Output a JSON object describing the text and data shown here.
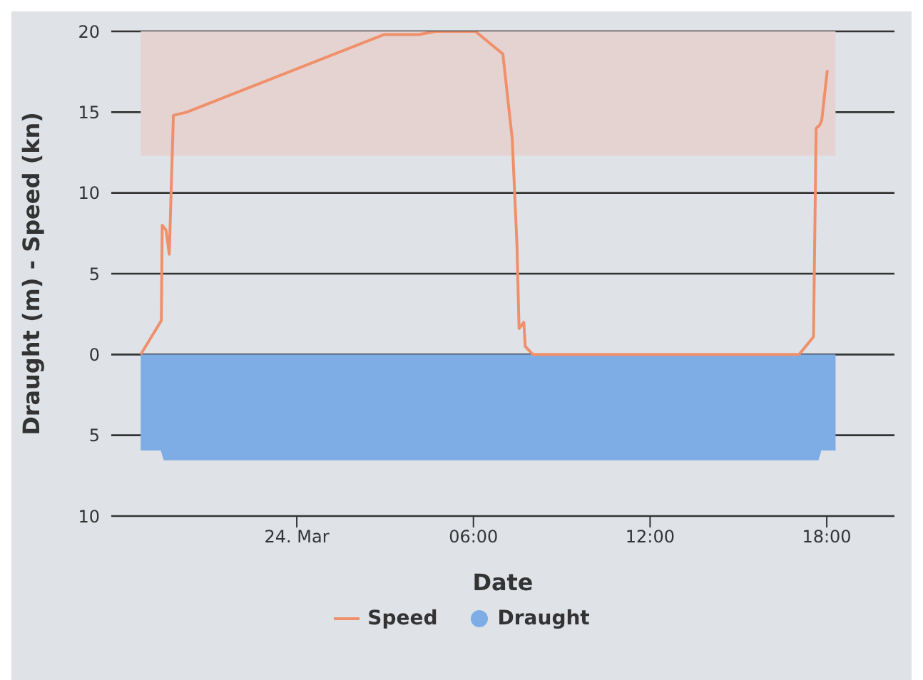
{
  "chart_data": {
    "type": "line",
    "xlabel": "Date",
    "ylabel": "Draught (m) - Speed (kn)",
    "xlim": [
      -6.3,
      20.3
    ],
    "xticks": [
      {
        "value": 0,
        "label": "24. Mar"
      },
      {
        "value": 6,
        "label": "06:00"
      },
      {
        "value": 12,
        "label": "12:00"
      },
      {
        "value": 18,
        "label": "18:00"
      }
    ],
    "ylim": [
      -10,
      20
    ],
    "yticks": [
      {
        "value": -10,
        "label": "10"
      },
      {
        "value": -5,
        "label": "5"
      },
      0,
      5,
      10,
      15,
      20
    ],
    "grid": "y",
    "legend": "bottom",
    "marker": "none",
    "line_style": "solid",
    "bands": [
      {
        "axis": "y",
        "from": 12.3,
        "to": 20,
        "color": "#e5d3d1"
      }
    ],
    "series": [
      {
        "name": "Speed",
        "color": "#f0906a",
        "x": [
          -5.3,
          -4.6,
          -4.57,
          -4.44,
          -4.33,
          -4.19,
          -3.74,
          2.96,
          4.13,
          4.74,
          6.07,
          6.2,
          7.0,
          7.32,
          7.48,
          7.55,
          7.71,
          7.76,
          8.02,
          17.06,
          17.55,
          17.64,
          17.76,
          17.83,
          18.02
        ],
        "values": [
          0,
          2.1,
          8.0,
          7.7,
          6.2,
          14.8,
          15.0,
          19.8,
          19.8,
          20,
          20,
          19.8,
          18.6,
          13.3,
          6.7,
          1.6,
          2.0,
          0.5,
          0,
          0,
          1.1,
          14.0,
          14.2,
          14.5,
          17.6
        ]
      },
      {
        "name": "Draught",
        "type": "area",
        "color": "#7eace4",
        "x": [
          -5.3,
          -4.6,
          -4.5,
          17.7,
          17.8,
          18.3
        ],
        "values": [
          -5.9,
          -5.9,
          -6.5,
          -6.5,
          -5.9,
          -5.9
        ]
      }
    ]
  }
}
